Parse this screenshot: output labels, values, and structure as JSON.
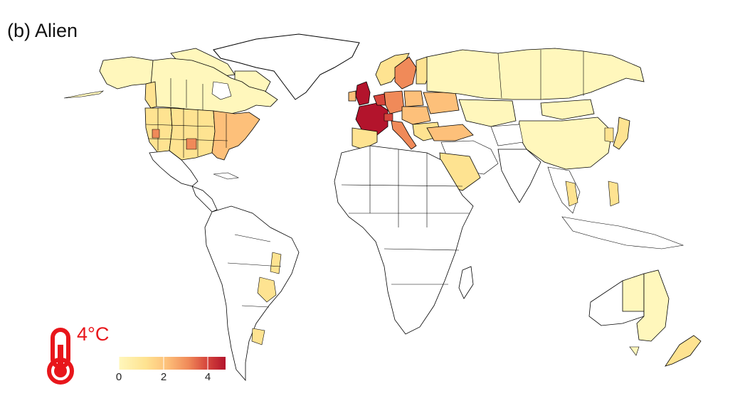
{
  "panel": {
    "title": "(b) Alien"
  },
  "scenario": {
    "label": "4°C",
    "accent_color": "#e8161b",
    "icon": "thermometer-icon"
  },
  "legend": {
    "ticks": [
      "0",
      "2",
      "4"
    ],
    "range": [
      0,
      4.8
    ],
    "colors": [
      "#fff7bc",
      "#fee391",
      "#fdc07a",
      "#f08a59",
      "#d6473d",
      "#b3142c"
    ]
  },
  "map": {
    "ocean_color": "#ffffff",
    "border_color": "#000000",
    "no_data_color": "#ffffff",
    "regions": [
      {
        "name": "United Kingdom",
        "value": 4.8
      },
      {
        "name": "France",
        "value": 4.8
      },
      {
        "name": "Belgium",
        "value": 4.3
      },
      {
        "name": "Netherlands",
        "value": 4.0
      },
      {
        "name": "Germany",
        "value": 2.8
      },
      {
        "name": "Sweden",
        "value": 2.2
      },
      {
        "name": "Italy",
        "value": 2.6
      },
      {
        "name": "Switzerland",
        "value": 3.0
      },
      {
        "name": "Spain",
        "value": 1.2
      },
      {
        "name": "Portugal",
        "value": 1.0
      },
      {
        "name": "Ireland",
        "value": 1.5
      },
      {
        "name": "Poland",
        "value": 1.6
      },
      {
        "name": "Austria",
        "value": 2.4
      },
      {
        "name": "Hungary",
        "value": 1.9
      },
      {
        "name": "Romania",
        "value": 1.6
      },
      {
        "name": "Ukraine",
        "value": 1.4
      },
      {
        "name": "Finland",
        "value": 1.0
      },
      {
        "name": "Norway",
        "value": 0.7
      },
      {
        "name": "Russia",
        "value": 0.4
      },
      {
        "name": "Kazakhstan",
        "value": 0.3
      },
      {
        "name": "China",
        "value": 0.3
      },
      {
        "name": "Mongolia",
        "value": 0.2
      },
      {
        "name": "Turkey",
        "value": 1.3
      },
      {
        "name": "Saudi Arabia",
        "value": 0.6
      },
      {
        "name": "Japan",
        "value": 0.8
      },
      {
        "name": "Canada",
        "value": 0.3
      },
      {
        "name": "Alaska",
        "value": 0.3
      },
      {
        "name": "Western USA",
        "value": 0.9
      },
      {
        "name": "Central USA",
        "value": 0.8
      },
      {
        "name": "Eastern USA",
        "value": 1.2
      },
      {
        "name": "Mexico",
        "value": 0.2
      },
      {
        "name": "Bolivia",
        "value": 0.4
      },
      {
        "name": "Paraguay",
        "value": 0.4
      },
      {
        "name": "Brazil (partial)",
        "value": 0.5
      },
      {
        "name": "Argentina (partial)",
        "value": 0.5
      },
      {
        "name": "Australia West",
        "value": 0.0
      },
      {
        "name": "Australia East",
        "value": 0.4
      },
      {
        "name": "New Zealand",
        "value": 0.5
      },
      {
        "name": "Philippines",
        "value": 0.7
      },
      {
        "name": "Thailand",
        "value": 0.5
      }
    ]
  }
}
